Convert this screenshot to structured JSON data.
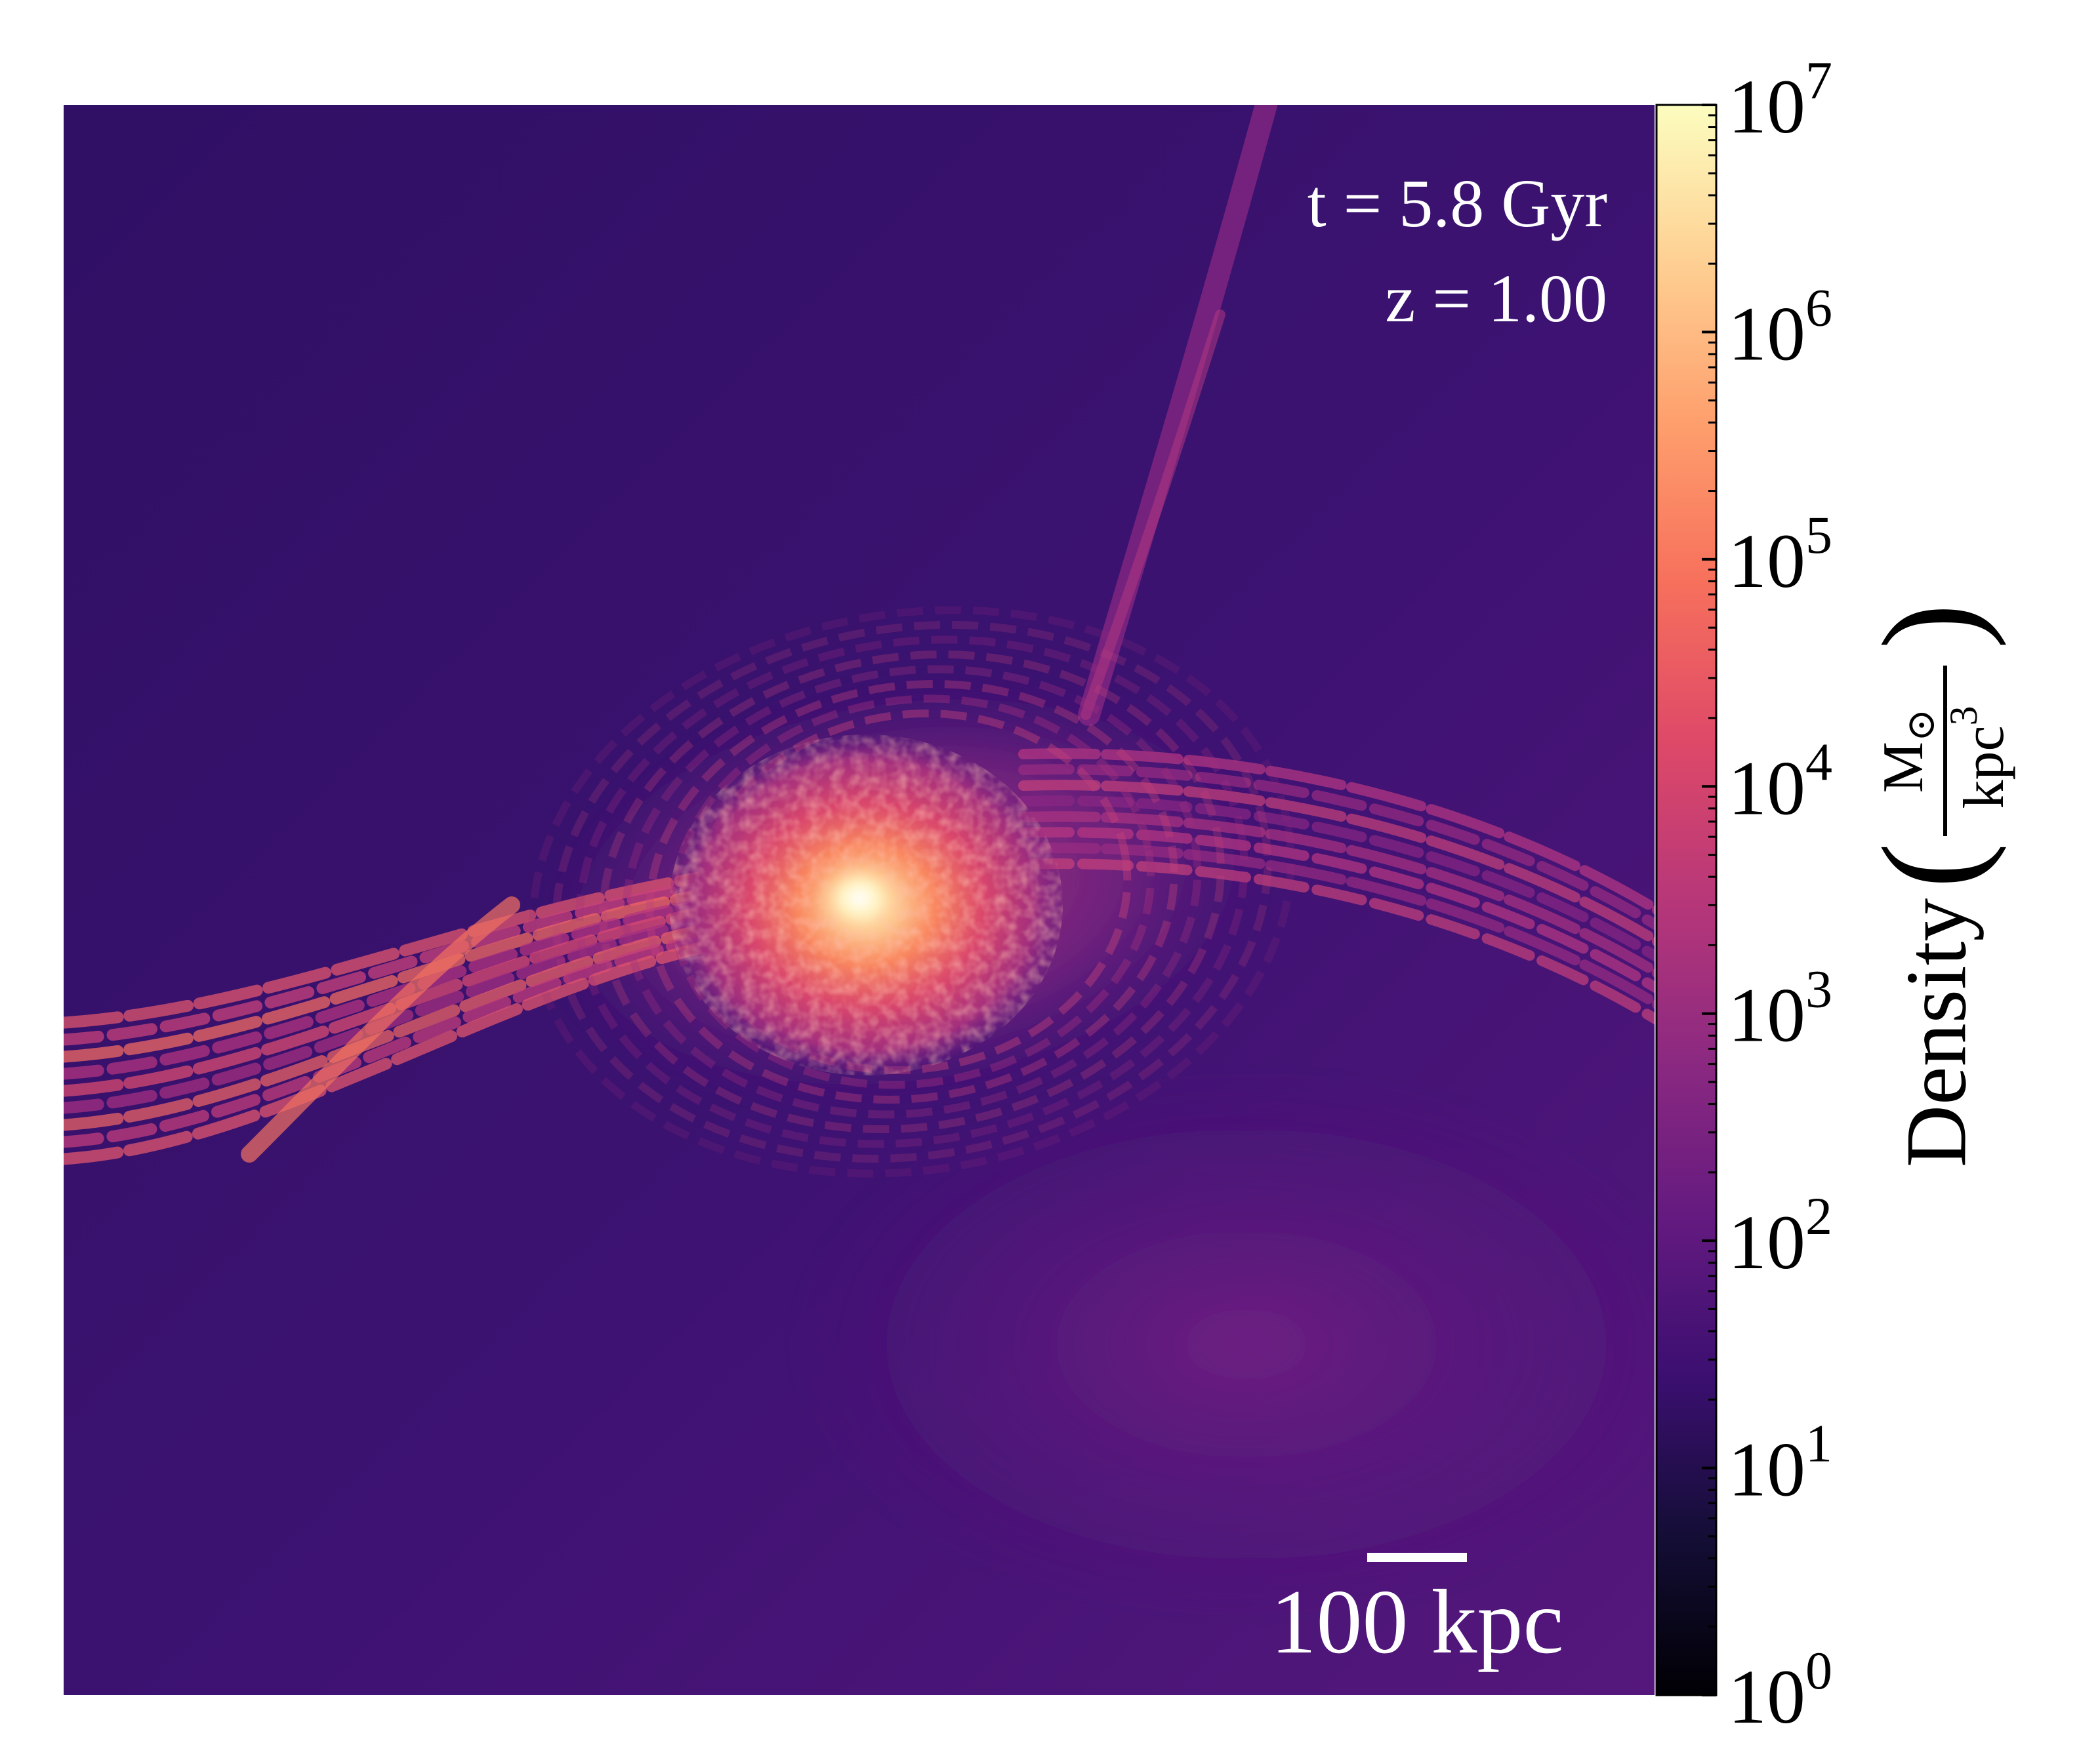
{
  "chart_data": {
    "type": "heatmap",
    "title": "",
    "annotations": {
      "time": "t = 5.8 Gyr",
      "redshift": "z = 1.00",
      "scalebar_label": "100 kpc"
    },
    "colorbar": {
      "label": "Density",
      "unit_numerator": "M",
      "unit_numerator_symbol": "⊙",
      "unit_denominator": "kpc",
      "unit_denominator_exp": "3",
      "scale": "log",
      "range": [
        1,
        10000000
      ],
      "colormap": "magma",
      "ticks": [
        {
          "base": "10",
          "exp": "0",
          "value": 1
        },
        {
          "base": "10",
          "exp": "1",
          "value": 10
        },
        {
          "base": "10",
          "exp": "2",
          "value": 100
        },
        {
          "base": "10",
          "exp": "3",
          "value": 1000
        },
        {
          "base": "10",
          "exp": "4",
          "value": 10000
        },
        {
          "base": "10",
          "exp": "5",
          "value": 100000
        },
        {
          "base": "10",
          "exp": "6",
          "value": 1000000
        },
        {
          "base": "10",
          "exp": "7",
          "value": 10000000
        }
      ]
    },
    "field_summary": {
      "background_density": 100,
      "core_peak_density": 3000000
    }
  }
}
